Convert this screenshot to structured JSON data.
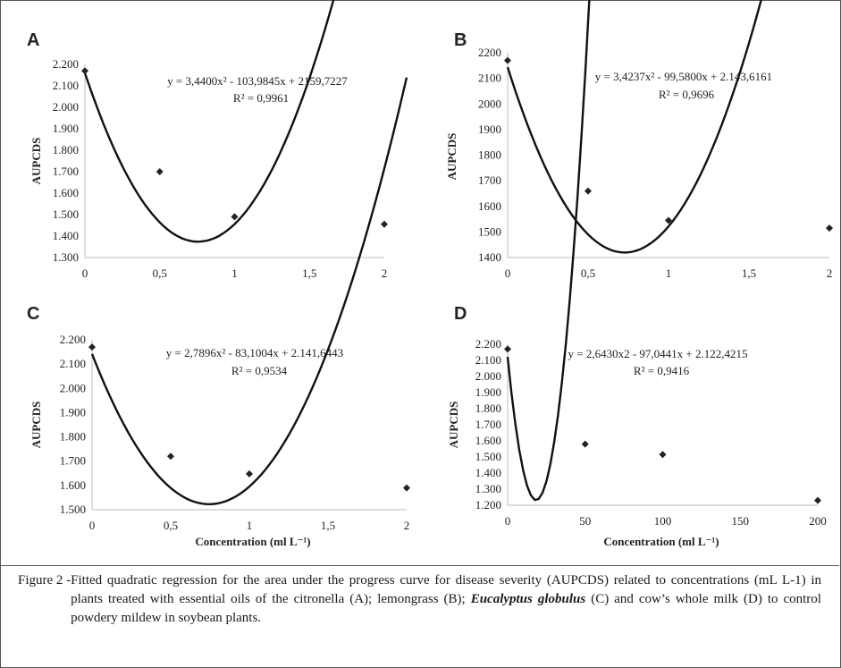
{
  "chart_data": [
    {
      "panel": "A",
      "type": "scatter",
      "x": [
        0,
        0.5,
        1,
        2
      ],
      "y": [
        2170,
        1700,
        1490,
        1455
      ],
      "fit": {
        "a": 3.44,
        "b": -103.9845,
        "c": 2159.7227
      },
      "xticks": [
        "0",
        "0,5",
        "1",
        "1,5",
        "2"
      ],
      "xtick_values": [
        0,
        0.5,
        1,
        1.5,
        2
      ],
      "xlim": [
        0,
        2
      ],
      "yticks": [
        "1.300",
        "1.400",
        "1.500",
        "1.600",
        "1.700",
        "1.800",
        "1.900",
        "2.000",
        "2.100",
        "2.200"
      ],
      "ylim": [
        1300,
        2200
      ],
      "ylabel": "AUPCDS",
      "xlabel": "",
      "equation": "y = 3,4400x² - 103,9845x + 2159,7227",
      "r2": "R² = 0,9961"
    },
    {
      "panel": "B",
      "type": "scatter",
      "x": [
        0,
        0.5,
        1,
        2
      ],
      "y": [
        2170,
        1660,
        1545,
        1515
      ],
      "fit": {
        "a": 3.4237,
        "b": -99.58,
        "c": 2143.6161
      },
      "xticks": [
        "0",
        "0,5",
        "1",
        "1,5",
        "2"
      ],
      "xtick_values": [
        0,
        0.5,
        1,
        1.5,
        2
      ],
      "xlim": [
        0,
        2
      ],
      "yticks": [
        "1400",
        "1500",
        "1600",
        "1700",
        "1800",
        "1900",
        "2000",
        "2100",
        "2200"
      ],
      "ylim": [
        1400,
        2200
      ],
      "ylabel": "AUPCDS",
      "xlabel": "",
      "equation": "y = 3,4237x² - 99,5800x + 2.143,6161",
      "r2": "R² = 0,9696"
    },
    {
      "panel": "C",
      "type": "scatter",
      "x": [
        0,
        0.5,
        1,
        2
      ],
      "y": [
        2170,
        1720,
        1648,
        1590
      ],
      "fit": {
        "a": 2.7896,
        "b": -83.1004,
        "c": 2141.6443
      },
      "xticks": [
        "0",
        "0,5",
        "1",
        "1,5",
        "2"
      ],
      "xtick_values": [
        0,
        0.5,
        1,
        1.5,
        2
      ],
      "xlim": [
        0,
        2
      ],
      "yticks": [
        "1.500",
        "1.600",
        "1.700",
        "1.800",
        "1.900",
        "2.000",
        "2.100",
        "2.200"
      ],
      "ylim": [
        1500,
        2200
      ],
      "ylabel": "AUPCDS",
      "xlabel": "Concentration (ml L⁻¹)",
      "equation": "y = 2,7896x² - 83,1004x + 2.141,6443",
      "r2": "R² = 0,9534"
    },
    {
      "panel": "D",
      "type": "scatter",
      "x": [
        0,
        50,
        100,
        200
      ],
      "y": [
        2170,
        1580,
        1515,
        1230
      ],
      "fit": {
        "a": 2.643,
        "b": -97.0441,
        "c": 2122.4215
      },
      "xticks": [
        "0",
        "50",
        "100",
        "150",
        "200"
      ],
      "xtick_values": [
        0,
        50,
        100,
        150,
        200
      ],
      "xlim": [
        0,
        200
      ],
      "yticks": [
        "1.200",
        "1.300",
        "1.400",
        "1.500",
        "1.600",
        "1.700",
        "1.800",
        "1.900",
        "2.000",
        "2.100",
        "2.200"
      ],
      "ylim": [
        1200,
        2200
      ],
      "ylabel": "AUPCDS",
      "xlabel": "Concentration (ml L⁻¹)",
      "equation": "y = 2,6430x2 - 97,0441x + 2.122,4215",
      "r2": "R² = 0,9416"
    }
  ],
  "caption": {
    "prefix": "Figure 2 - ",
    "part1": "Fitted quadratic regression for the  area under the progress curve for disease severity (AUPCDS) related to concentrations (mL L-1) in plants treated with essential oils of the citronella (A); lemongrass (B); ",
    "italic": "Eucalyptus globulus",
    "part2": " (C) and cow’s whole milk (D) to control powdery mildew in soybean plants."
  }
}
